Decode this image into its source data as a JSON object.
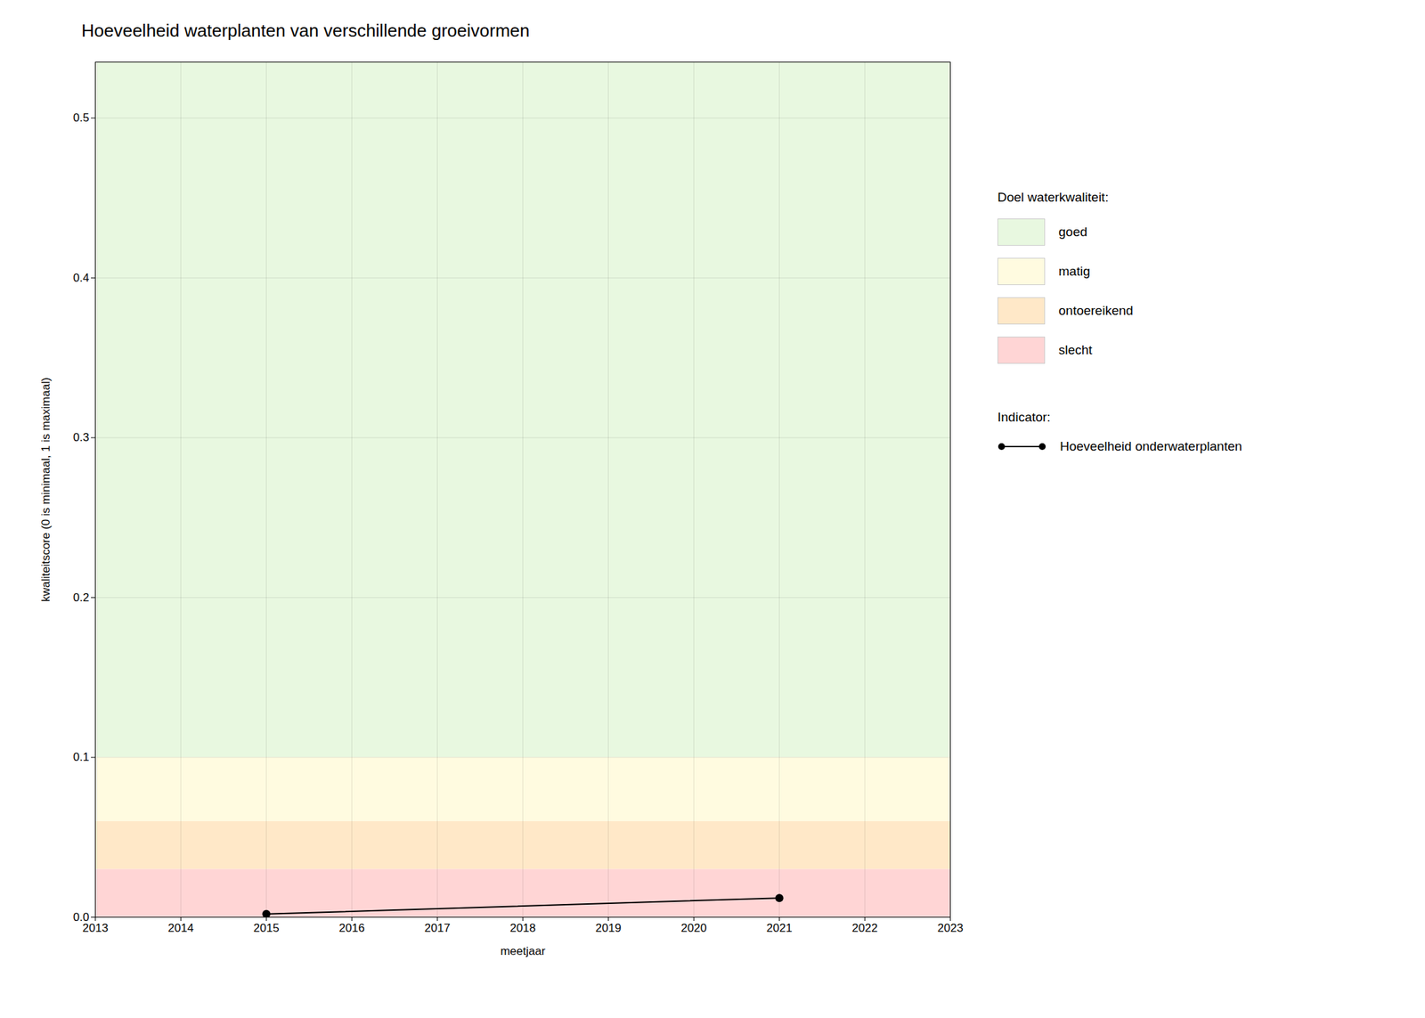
{
  "chart_data": {
    "type": "line",
    "title": "Hoeveelheid waterplanten van verschillende groeivormen",
    "xlabel": "meetjaar",
    "ylabel": "kwaliteitscore (0 is minimaal, 1 is maximaal)",
    "x": [
      2015,
      2021
    ],
    "series": [
      {
        "name": "Hoeveelheid onderwaterplanten",
        "color": "black",
        "marker": "circle",
        "values": [
          0.002,
          0.012
        ]
      }
    ],
    "xlim": [
      2013,
      2023
    ],
    "ylim": [
      0,
      0.535
    ],
    "xticks": [
      2013,
      2014,
      2015,
      2016,
      2017,
      2018,
      2019,
      2020,
      2021,
      2022,
      2023
    ],
    "yticks": [
      {
        "value": 0,
        "label": "0.0"
      },
      0.1,
      0.2,
      0.3,
      0.4,
      0.5
    ],
    "grid": true,
    "bands": [
      {
        "ymin": 0.0,
        "ymax": 0.03,
        "color": "#FFD5D5",
        "label": "slecht"
      },
      {
        "ymin": 0.03,
        "ymax": 0.06,
        "color": "#FFE8C8",
        "label": "ontoereikend"
      },
      {
        "ymin": 0.06,
        "ymax": 0.1,
        "color": "#FFFBE0",
        "label": "matig"
      },
      {
        "ymin": 0.1,
        "ymax": 0.535,
        "color": "#E8F8E0",
        "label": "goed"
      }
    ],
    "band_legend_title": "Doel waterkwaliteit:",
    "series_legend_title": "Indicator:"
  }
}
